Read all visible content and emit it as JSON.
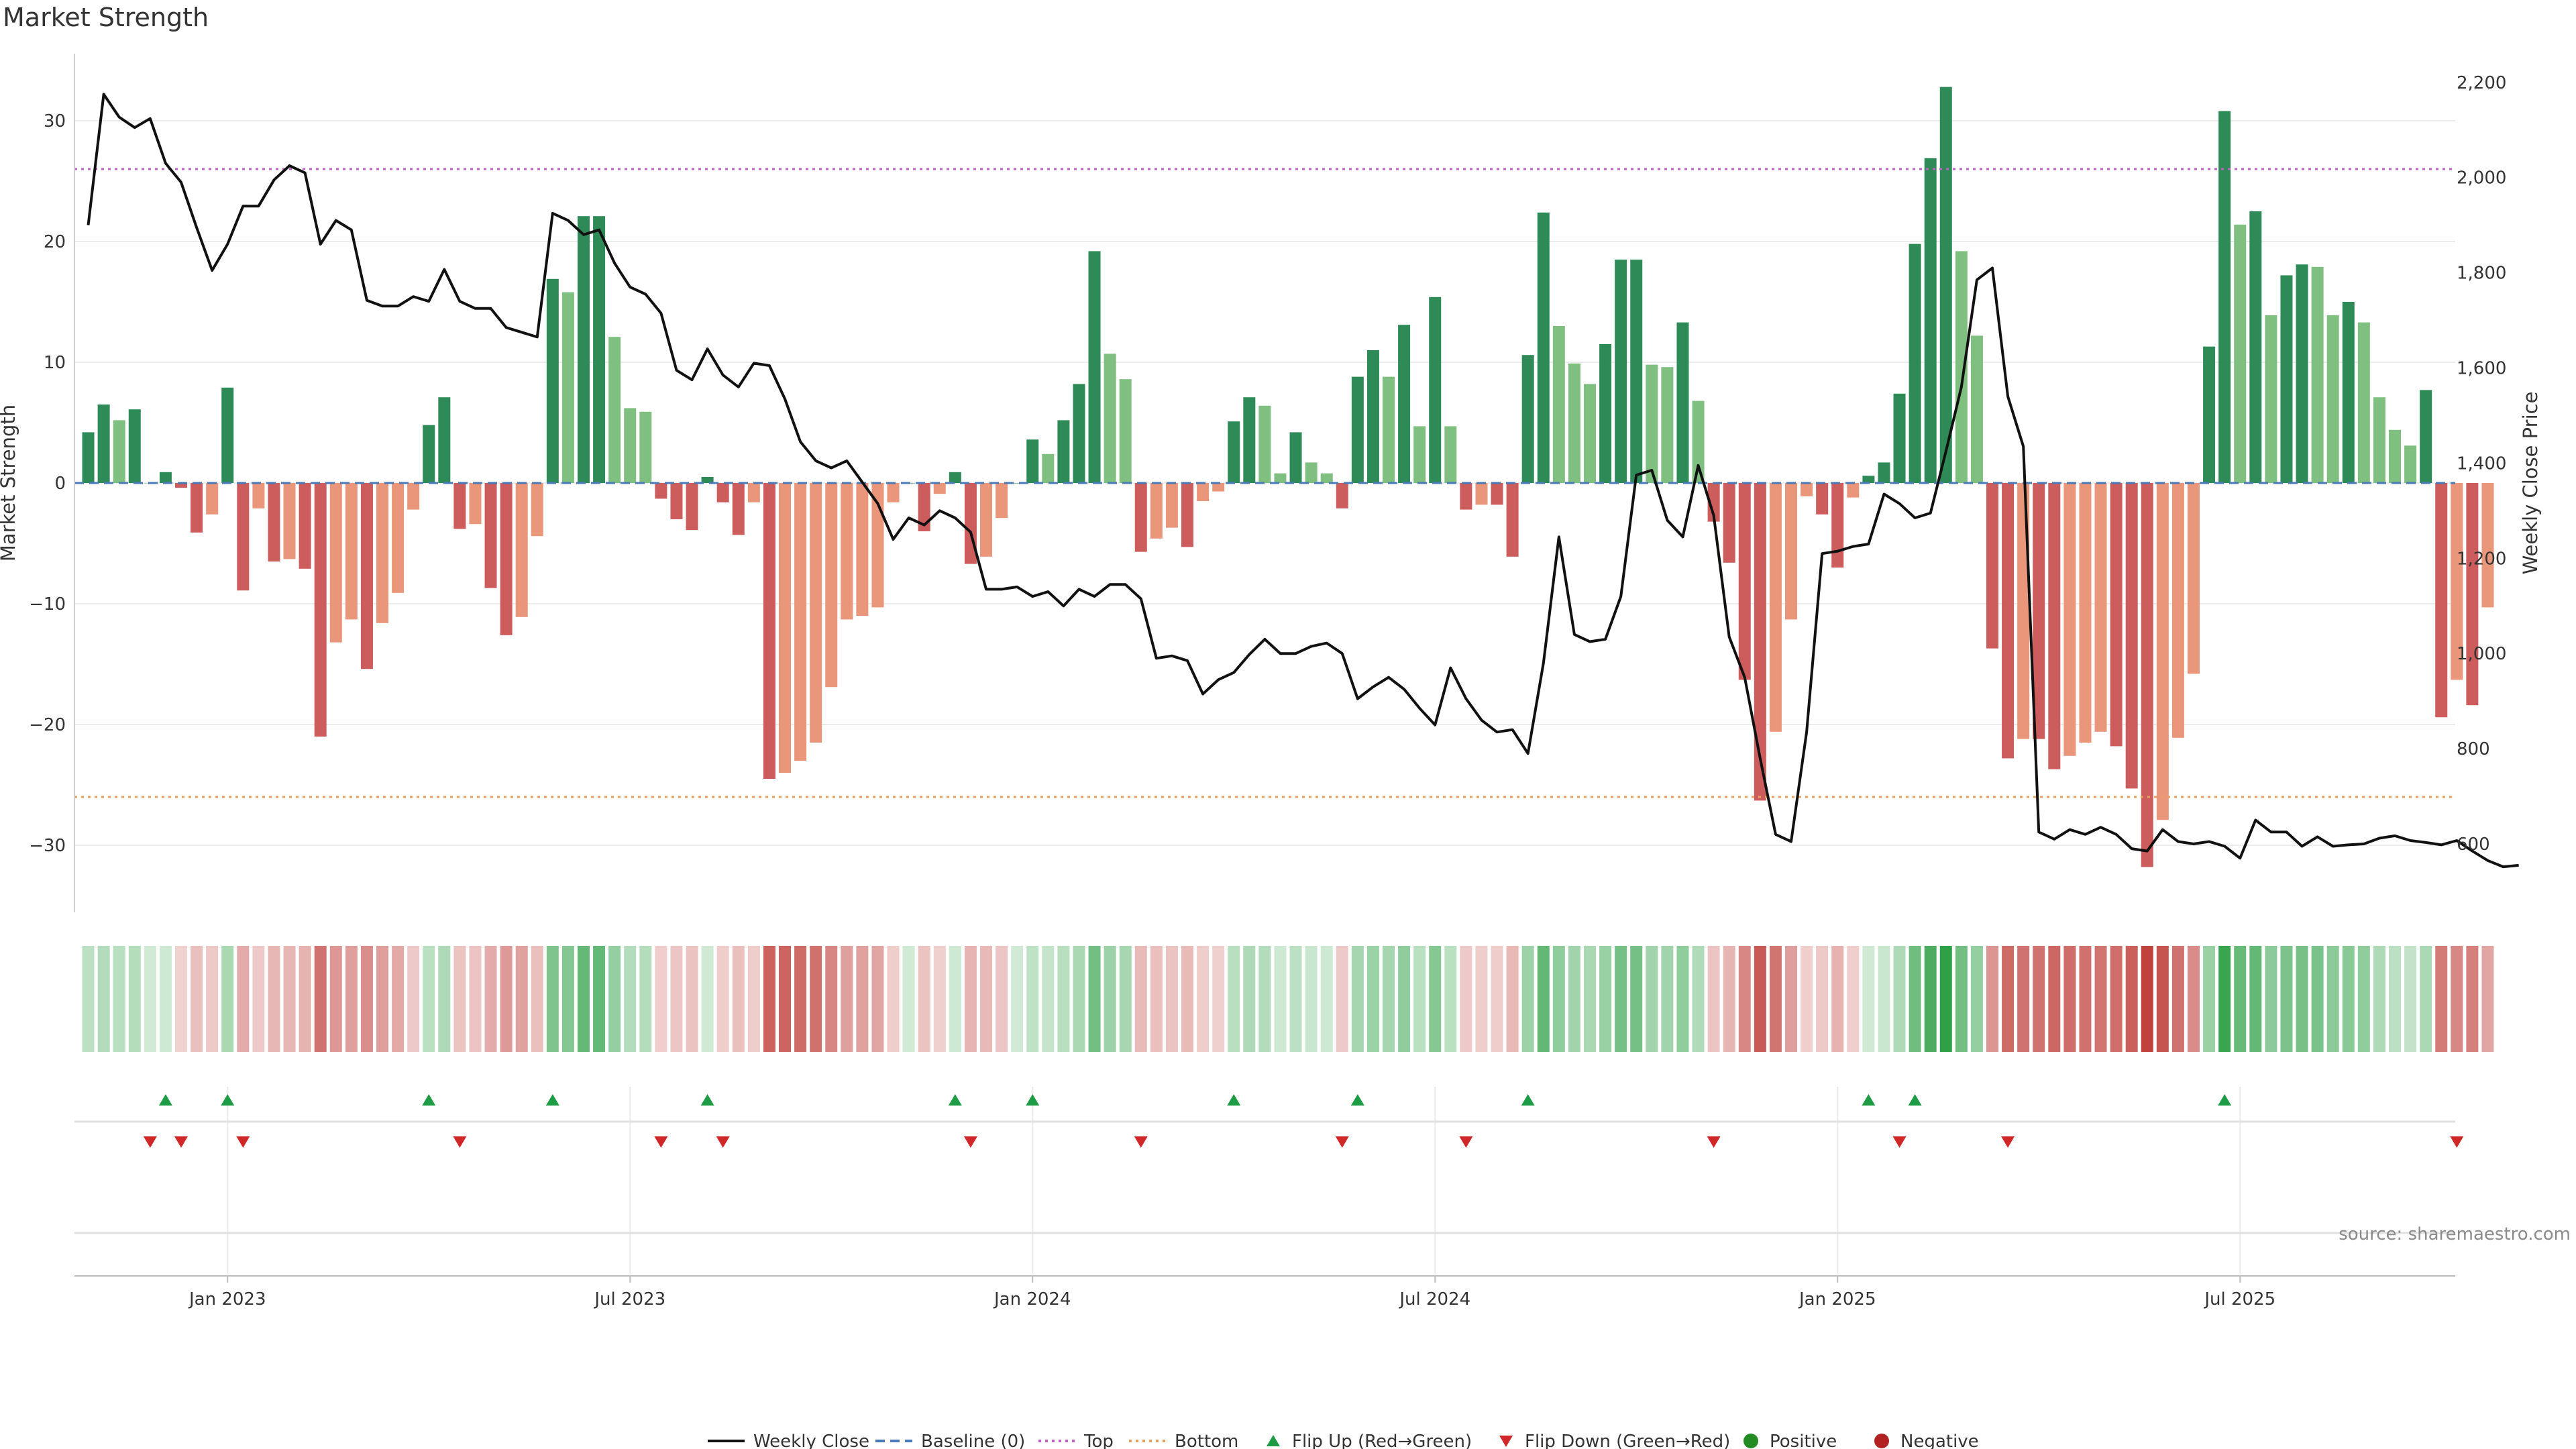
{
  "chart_data": {
    "type": "bar",
    "title": "Market Strength",
    "ylabel_left": "Market Strength",
    "ylabel_right": "Weekly Close Price",
    "ylim_left": [
      -36,
      36
    ],
    "ylim_right": [
      500,
      2250
    ],
    "yticks_left": [
      "30",
      "20",
      "10",
      "0",
      "−10",
      "−20",
      "−30"
    ],
    "yticks_left_values": [
      30,
      20,
      10,
      0,
      -10,
      -20,
      -30
    ],
    "yticks_right": [
      "2,200",
      "2,000",
      "1,800",
      "1,600",
      "1,400",
      "1,200",
      "1,000",
      "800",
      "600"
    ],
    "yticks_right_values": [
      2200,
      2000,
      1800,
      1600,
      1400,
      1200,
      1000,
      800,
      600
    ],
    "top_level": 26,
    "bottom_level": -26,
    "x_labels": [
      "Jan 2023",
      "Jul 2023",
      "Jan 2024",
      "Jul 2024",
      "Jan 2025",
      "Jul 2025"
    ],
    "x_label_week_index": [
      9,
      35,
      61,
      87,
      113,
      139
    ],
    "series": [
      {
        "name": "Market Strength",
        "values": [
          4.2,
          6.5,
          5.2,
          6.1,
          0,
          0.9,
          -0.4,
          -4.1,
          -2.6,
          7.9,
          -8.9,
          -2.1,
          -6.5,
          -6.3,
          -7.1,
          -21,
          -13.2,
          -11.3,
          -15.4,
          -11.6,
          -9.1,
          -2.2,
          4.8,
          7.1,
          -3.8,
          -3.4,
          -8.7,
          -12.6,
          -11.1,
          -4.4,
          16.9,
          15.8,
          22.1,
          22.1,
          12.1,
          6.2,
          5.9,
          -1.3,
          -3,
          -3.9,
          0.5,
          -1.6,
          -4.3,
          -1.6,
          -24.5,
          -24,
          -23,
          -21.5,
          -16.9,
          -11.3,
          -11,
          -10.3,
          -1.6,
          0,
          -4,
          -0.9,
          0.9,
          -6.7,
          -6.1,
          -2.9,
          0,
          3.6,
          2.4,
          5.2,
          8.2,
          19.2,
          10.7,
          8.6,
          -5.7,
          -4.6,
          -3.7,
          -5.3,
          -1.5,
          -0.7,
          5.1,
          7.1,
          6.4,
          0.8,
          4.2,
          1.7,
          0.8,
          -2.1,
          8.8,
          11,
          8.8,
          13.1,
          4.7,
          15.4,
          4.7,
          -2.2,
          -1.8,
          -1.8,
          -6.1,
          10.6,
          22.4,
          13,
          9.9,
          8.2,
          11.5,
          18.5,
          18.5,
          9.8,
          9.6,
          13.3,
          6.8,
          -3.2,
          -6.6,
          -16.3,
          -26.3,
          -20.6,
          -11.3,
          -1.1,
          -2.6,
          -7,
          -1.2,
          0.6,
          1.7,
          7.4,
          19.8,
          26.9,
          32.8,
          19.2,
          12.2,
          -13.7,
          -22.8,
          -21.2,
          -21.2,
          -23.7,
          -22.6,
          -21.5,
          -20.6,
          -21.8,
          -25.3,
          -31.8,
          -27.9,
          -21.1,
          -15.8,
          11.3,
          30.8,
          21.4,
          22.5,
          13.9,
          17.2,
          18.1,
          17.9,
          13.9,
          15,
          13.3,
          7.1,
          4.4,
          3.1,
          7.7,
          -19.4,
          -16.3,
          -18.4,
          -10.3
        ]
      },
      {
        "name": "Weekly Close",
        "values": [
          1900,
          2175,
          2127,
          2105,
          2124,
          2030,
          1990,
          1895,
          1805,
          1860,
          1940,
          1940,
          1995,
          2025,
          2010,
          1860,
          1910,
          1890,
          1742,
          1730,
          1730,
          1750,
          1740,
          1807,
          1740,
          1725,
          1725,
          1685,
          1675,
          1665,
          1925,
          1910,
          1880,
          1890,
          1820,
          1770,
          1755,
          1715,
          1595,
          1575,
          1640,
          1585,
          1560,
          1610,
          1605,
          1535,
          1445,
          1405,
          1390,
          1405,
          1360,
          1315,
          1240,
          1285,
          1270,
          1300,
          1285,
          1255,
          1135,
          1135,
          1140,
          1120,
          1130,
          1100,
          1135,
          1120,
          1145,
          1145,
          1115,
          990,
          995,
          985,
          915,
          945,
          960,
          998,
          1030,
          1000,
          1000,
          1015,
          1022,
          1000,
          905,
          930,
          950,
          925,
          885,
          850,
          970,
          905,
          860,
          835,
          840,
          790,
          980,
          1245,
          1040,
          1025,
          1030,
          1120,
          1375,
          1385,
          1280,
          1245,
          1395,
          1290,
          1035,
          950,
          780,
          620,
          605,
          835,
          1210,
          1215,
          1225,
          1230,
          1335,
          1315,
          1285,
          1295,
          1425,
          1560,
          1785,
          1810,
          1540,
          1435,
          625,
          610,
          630,
          620,
          635,
          620,
          590,
          585,
          630,
          605,
          600,
          605,
          595,
          570,
          650,
          625,
          625,
          595,
          615,
          595,
          598,
          600,
          612,
          617,
          607,
          603,
          598,
          607,
          585,
          565,
          552,
          555
        ]
      }
    ],
    "flip_up_week_index": [
      5,
      9,
      22,
      30,
      40,
      56,
      61,
      74,
      82,
      93,
      115,
      118,
      138
    ],
    "flip_down_week_index": [
      4,
      6,
      10,
      24,
      37,
      41,
      57,
      68,
      81,
      89,
      105,
      117,
      124,
      153
    ],
    "legend": [
      "Weekly Close",
      "Baseline (0)",
      "Top",
      "Bottom",
      "Flip Up (Red→Green)",
      "Flip Down (Green→Red)",
      "Positive",
      "Negative"
    ]
  },
  "colors": {
    "pos_strong": "#2e8b57",
    "pos_weak": "#7fbf7f",
    "neg_strong": "#cd5c5c",
    "neg_weak": "#e9967a",
    "top_line": "#c060c0",
    "bottom_line": "#e8a060",
    "baseline": "#4a7ab8",
    "flip_up": "#1e9b45",
    "flip_down": "#d02828",
    "positive_dot": "#228b22",
    "negative_dot": "#b22222"
  },
  "source": "source: sharemaestro.com"
}
